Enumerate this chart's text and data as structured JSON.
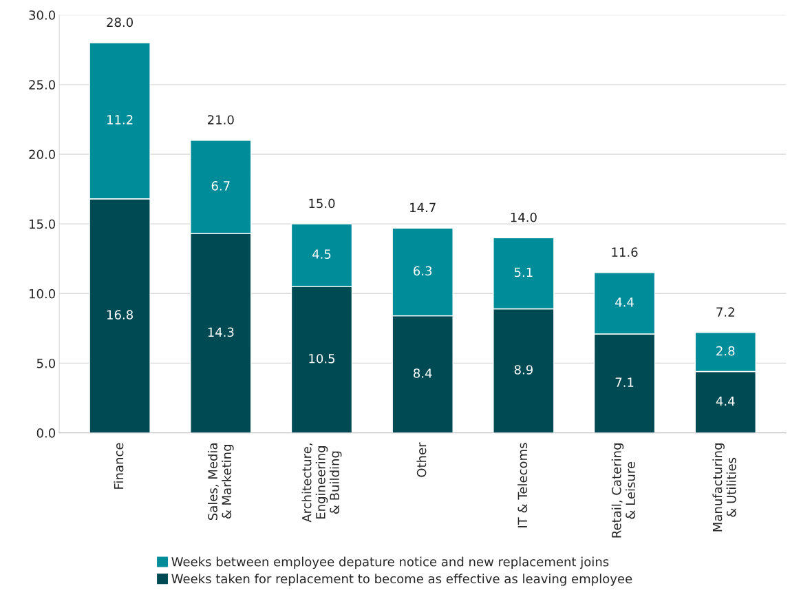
{
  "chart_data": {
    "type": "bar",
    "stacked": true,
    "categories": [
      "Finance",
      "Sales, Media\n& Marketing",
      "Architecture,\nEngineering\n& Building",
      "Other",
      "IT & Telecoms",
      "Retail, Catering\n& Leisure",
      "Manufacturing\n& Utilities"
    ],
    "series": [
      {
        "name": "Weeks taken for replacement to become as effective as leaving employee",
        "color": "#004a53",
        "values": [
          16.8,
          14.3,
          10.5,
          8.4,
          8.9,
          7.1,
          4.4
        ]
      },
      {
        "name": "Weeks between employee depature notice and new replacement joins",
        "color": "#008c99",
        "values": [
          11.2,
          6.7,
          4.5,
          6.3,
          5.1,
          4.4,
          2.8
        ]
      }
    ],
    "totals": [
      "28.0",
      "21.0",
      "15.0",
      "14.7",
      "14.0",
      "11.6",
      "7.2"
    ],
    "data_labels": true,
    "ylim": [
      0,
      30
    ],
    "yticks": [
      {
        "value": 0,
        "label": "0.0"
      },
      {
        "value": 5,
        "label": "5.0"
      },
      {
        "value": 10,
        "label": "10.0"
      },
      {
        "value": 15,
        "label": "15.0"
      },
      {
        "value": 20,
        "label": "20.0"
      },
      {
        "value": 25,
        "label": "25.0"
      },
      {
        "value": 30,
        "label": "30.0"
      }
    ],
    "grid": "y",
    "legend": "bottom"
  }
}
